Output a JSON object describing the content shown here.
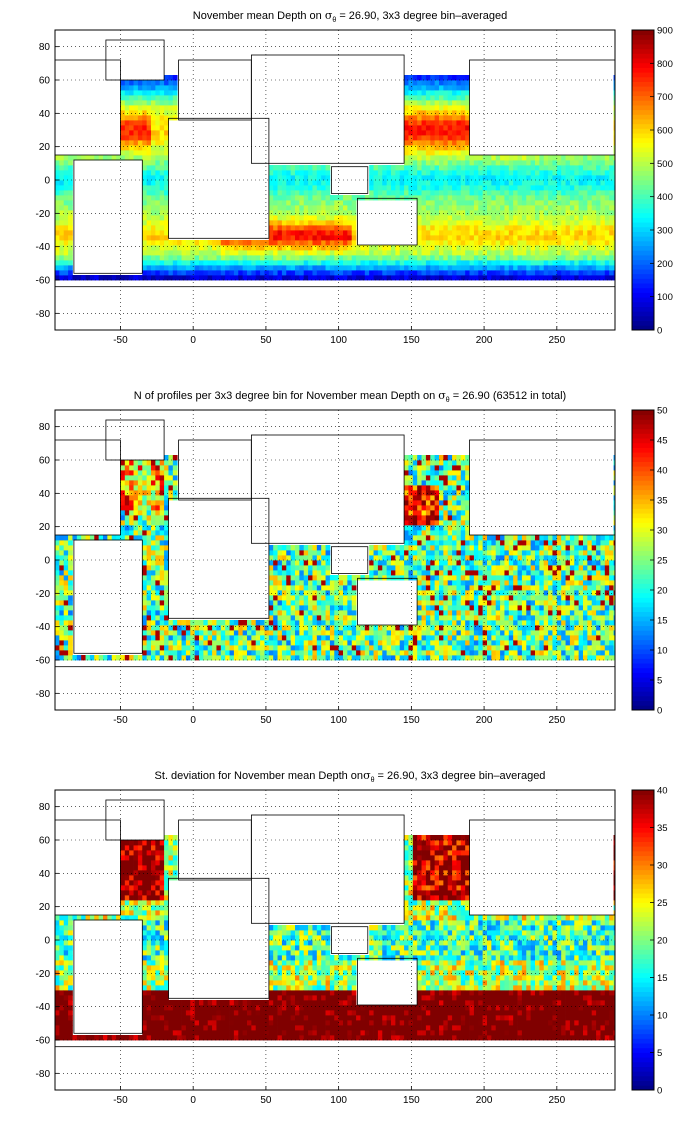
{
  "chart_data": [
    {
      "type": "heatmap",
      "title_parts": [
        "November mean Depth on ",
        "σ",
        "θ",
        " = 26.90, 3x3 degree bin–averaged"
      ],
      "xlabel": "",
      "ylabel": "",
      "xlim": [
        -95,
        290
      ],
      "ylim": [
        -90,
        90
      ],
      "x_ticks": [
        "-50",
        "0",
        "50",
        "100",
        "150",
        "200",
        "250"
      ],
      "y_ticks": [
        "80",
        "60",
        "40",
        "20",
        "0",
        "-20",
        "-40",
        "-60",
        "-80"
      ],
      "grid": true,
      "colorbar": {
        "min": 0,
        "max": 900,
        "ticks": [
          "900",
          "800",
          "700",
          "600",
          "500",
          "400",
          "300",
          "200",
          "100",
          "0"
        ]
      },
      "field": "depth"
    },
    {
      "type": "heatmap",
      "title_parts": [
        "N of profiles per 3x3 degree bin for November mean Depth on ",
        "σ",
        "θ",
        " = 26.90 (63512 in total)"
      ],
      "xlabel": "",
      "ylabel": "",
      "xlim": [
        -95,
        290
      ],
      "ylim": [
        -90,
        90
      ],
      "x_ticks": [
        "-50",
        "0",
        "50",
        "100",
        "150",
        "200",
        "250"
      ],
      "y_ticks": [
        "80",
        "60",
        "40",
        "20",
        "0",
        "-20",
        "-40",
        "-60",
        "-80"
      ],
      "grid": true,
      "colorbar": {
        "min": 0,
        "max": 50,
        "ticks": [
          "50",
          "45",
          "40",
          "35",
          "30",
          "25",
          "20",
          "15",
          "10",
          "5",
          "0"
        ]
      },
      "field": "count"
    },
    {
      "type": "heatmap",
      "title_parts": [
        "St. deviation for November mean Depth on",
        "σ",
        "θ",
        " = 26.90, 3x3 degree bin–averaged"
      ],
      "xlabel": "",
      "ylabel": "",
      "xlim": [
        -95,
        290
      ],
      "ylim": [
        -90,
        90
      ],
      "x_ticks": [
        "-50",
        "0",
        "50",
        "100",
        "150",
        "200",
        "250"
      ],
      "y_ticks": [
        "80",
        "60",
        "40",
        "20",
        "0",
        "-20",
        "-40",
        "-60",
        "-80"
      ],
      "grid": true,
      "colorbar": {
        "min": 0,
        "max": 40,
        "ticks": [
          "40",
          "35",
          "30",
          "25",
          "20",
          "15",
          "10",
          "5",
          "0"
        ]
      },
      "field": "std"
    }
  ]
}
